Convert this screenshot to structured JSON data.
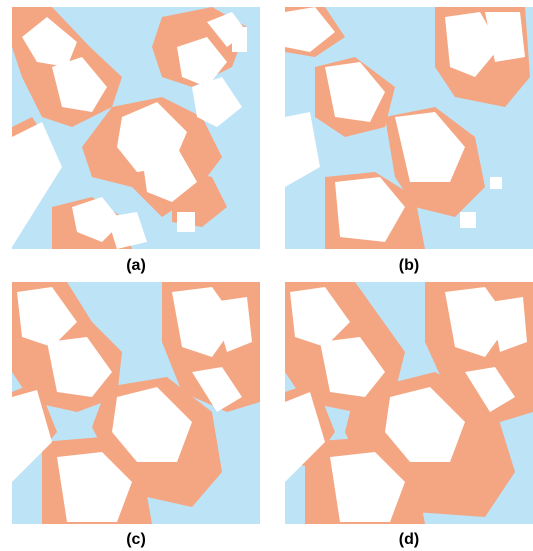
{
  "figure": {
    "panels": [
      {
        "id": "a",
        "caption": "(a)"
      },
      {
        "id": "b",
        "caption": "(b)"
      },
      {
        "id": "c",
        "caption": "(c)"
      },
      {
        "id": "d",
        "caption": "(d)"
      }
    ],
    "colors": {
      "background": "#bde3f7",
      "building": "#ffffff",
      "region": "#f4a582",
      "caption": "#000000"
    }
  }
}
